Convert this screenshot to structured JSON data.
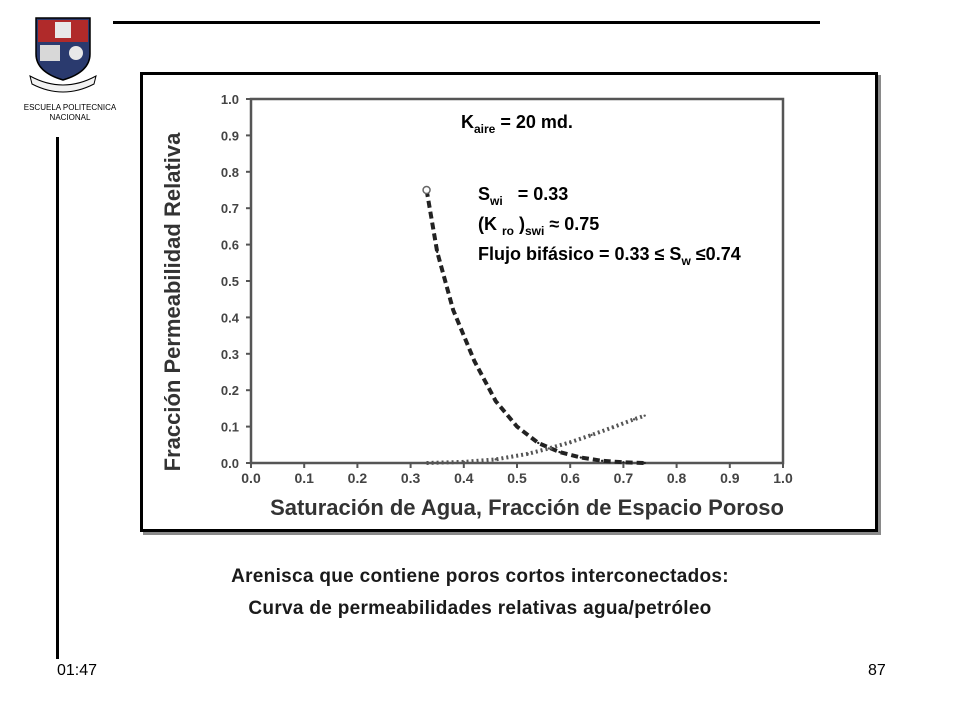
{
  "header": {
    "institution_line1": "ESCUELA POLITECNICA",
    "institution_line2": "NACIONAL"
  },
  "chart_data": {
    "type": "line",
    "xlabel": "Saturación de Agua, Fracción de Espacio Poroso",
    "ylabel": "Fracción Permeabilidad Relativa",
    "xlim": [
      0,
      1.0
    ],
    "ylim": [
      0,
      1.0
    ],
    "x_ticks": [
      "0.0",
      "0.1",
      "0.2",
      "0.3",
      "0.4",
      "0.5",
      "0.6",
      "0.7",
      "0.8",
      "0.9",
      "1.0"
    ],
    "y_ticks": [
      "0.0",
      "0.1",
      "0.2",
      "0.3",
      "0.4",
      "0.5",
      "0.6",
      "0.7",
      "0.8",
      "0.9",
      "1.0"
    ],
    "grid": false,
    "series": [
      {
        "color": "#222222",
        "style": "dashed",
        "x": [
          0.33,
          0.35,
          0.38,
          0.42,
          0.46,
          0.5,
          0.54,
          0.58,
          0.62,
          0.66,
          0.7,
          0.74
        ],
        "y": [
          0.75,
          0.58,
          0.42,
          0.28,
          0.17,
          0.1,
          0.055,
          0.03,
          0.015,
          0.006,
          0.002,
          0.0
        ]
      },
      {
        "color": "#555555",
        "style": "dotted",
        "x": [
          0.33,
          0.4,
          0.46,
          0.52,
          0.56,
          0.6,
          0.64,
          0.68,
          0.72,
          0.74
        ],
        "y": [
          0.0,
          0.003,
          0.01,
          0.025,
          0.04,
          0.057,
          0.077,
          0.098,
          0.12,
          0.13
        ]
      }
    ],
    "annotations": {
      "kaire": {
        "base": "K",
        "sub": "aire",
        "rest": " = 20 md."
      },
      "swi": {
        "base": "S",
        "sub": "wi",
        "rest": "   = 0.33"
      },
      "kro": {
        "open": "(K ",
        "sub1": "ro",
        "mid": " )",
        "sub2": "swi",
        "rest": " ≈ 0.75"
      },
      "flujo": {
        "text": "Flujo bifásico = 0.33 ≤ S",
        "sub": "w",
        "rest": " ≤0.74"
      }
    }
  },
  "caption": {
    "line1": "Arenisca que contiene poros cortos interconectados:",
    "line2": "Curva de permeabilidades relativas agua/petróleo"
  },
  "footer": {
    "time": "01:47",
    "page": "87"
  }
}
